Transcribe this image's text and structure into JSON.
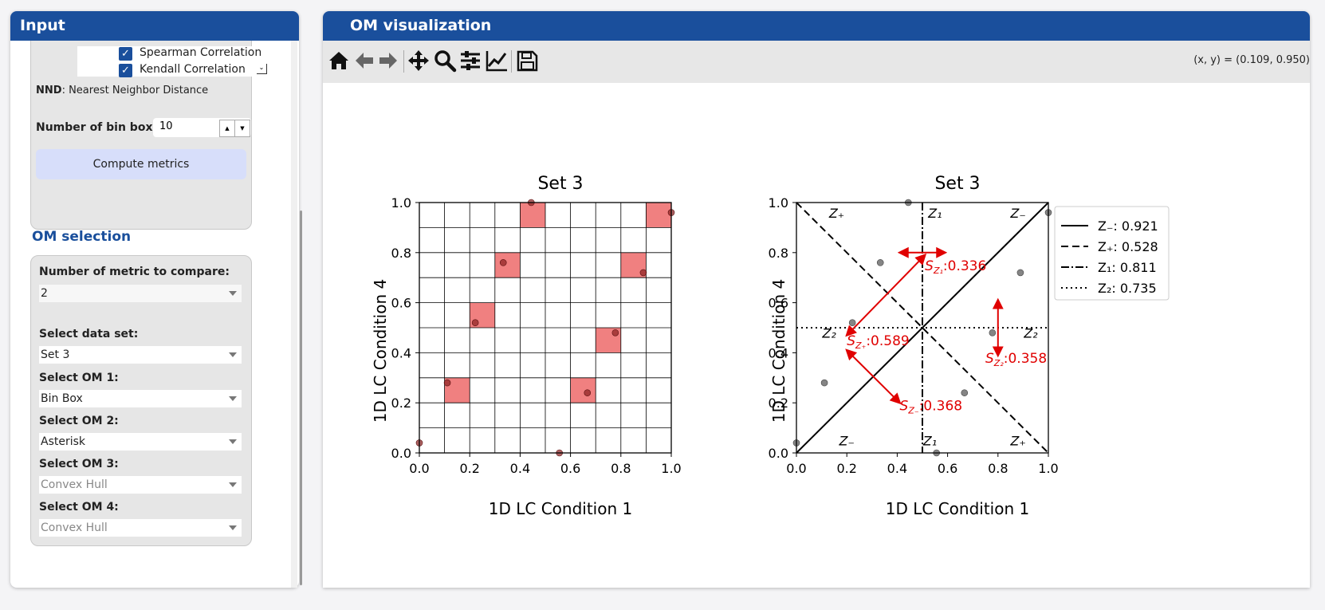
{
  "input_panel": {
    "title": "Input",
    "metrics_list": [
      {
        "label": "Spearman Correlation",
        "checked": true
      },
      {
        "label": "Kendall Correlation",
        "checked": true
      }
    ],
    "nnd_abbr": "NND",
    "nnd_text": ": Nearest Neighbor Distance",
    "bin_box_label": "Number of bin box:",
    "bin_box_value": "10",
    "compute_button": "Compute metrics",
    "om_selection_title": "OM selection",
    "num_metric_label": "Number of metric to compare:",
    "num_metric_value": "2",
    "dataset_label": "Select data set:",
    "dataset_value": "Set 3",
    "om1_label": "Select OM 1:",
    "om1_value": "Bin Box",
    "om2_label": "Select OM 2:",
    "om2_value": "Asterisk",
    "om3_label": "Select OM 3:",
    "om3_value": "Convex Hull",
    "om4_label": "Select OM 4:",
    "om4_value": "Convex Hull"
  },
  "om_panel": {
    "title": "OM visualization",
    "toolbar_icons": [
      "home-icon",
      "back-icon",
      "forward-icon",
      "pan-icon",
      "zoom-icon",
      "configure-icon",
      "edit-axes-icon",
      "save-icon"
    ],
    "coord_readout": "(x, y) = (0.109, 0.950)"
  },
  "colors": {
    "header": "#1a4f9c",
    "bin_fill": "#f08080",
    "point": "#666666",
    "annotation": "#e00000"
  },
  "chart_data": [
    {
      "type": "scatter",
      "title": "Set 3",
      "xlabel": "1D LC Condition 1",
      "ylabel": "1D LC Condition 4",
      "xlim": [
        0,
        1
      ],
      "ylim": [
        0,
        1
      ],
      "ticks": [
        "0.0",
        "0.2",
        "0.4",
        "0.6",
        "0.8",
        "1.0"
      ],
      "bins": 10,
      "highlighted_bins": [
        [
          4,
          9
        ],
        [
          9,
          9
        ],
        [
          3,
          7
        ],
        [
          8,
          7
        ],
        [
          2,
          5
        ],
        [
          7,
          4
        ],
        [
          1,
          2
        ],
        [
          6,
          2
        ]
      ],
      "points": [
        [
          0.0,
          0.04
        ],
        [
          0.111,
          0.28
        ],
        [
          0.222,
          0.52
        ],
        [
          0.333,
          0.76
        ],
        [
          0.444,
          1.0
        ],
        [
          0.556,
          0.0
        ],
        [
          0.667,
          0.24
        ],
        [
          0.778,
          0.48
        ],
        [
          0.889,
          0.72
        ],
        [
          1.0,
          0.96
        ]
      ]
    },
    {
      "type": "scatter",
      "title": "Set 3",
      "xlabel": "1D LC Condition 1",
      "ylabel": "1D LC Condition 4",
      "xlim": [
        0,
        1
      ],
      "ylim": [
        0,
        1
      ],
      "ticks": [
        "0.0",
        "0.2",
        "0.4",
        "0.6",
        "0.8",
        "1.0"
      ],
      "points": [
        [
          0.0,
          0.04
        ],
        [
          0.111,
          0.28
        ],
        [
          0.222,
          0.52
        ],
        [
          0.333,
          0.76
        ],
        [
          0.444,
          1.0
        ],
        [
          0.556,
          0.0
        ],
        [
          0.667,
          0.24
        ],
        [
          0.778,
          0.48
        ],
        [
          0.889,
          0.72
        ],
        [
          1.0,
          0.96
        ]
      ],
      "legend": [
        {
          "style": "solid",
          "label": "Z₋: 0.921"
        },
        {
          "style": "dashed",
          "label": "Z₊: 0.528"
        },
        {
          "style": "dashdot",
          "label": "Z₁: 0.811"
        },
        {
          "style": "dotted",
          "label": "Z₂: 0.735"
        }
      ],
      "zone_labels": {
        "zplus": "Z₊",
        "zminus": "Z₋",
        "z1": "Z₁",
        "z2": "Z₂"
      },
      "annotations": [
        {
          "label": "S",
          "sub": "Z₁",
          "value": ":0.336"
        },
        {
          "label": "S",
          "sub": "Z₊",
          "value": ":0.589"
        },
        {
          "label": "S",
          "sub": "Z₂",
          "value": ":0.358"
        },
        {
          "label": "S",
          "sub": "Z₋",
          "value": ":0.368"
        }
      ]
    }
  ]
}
